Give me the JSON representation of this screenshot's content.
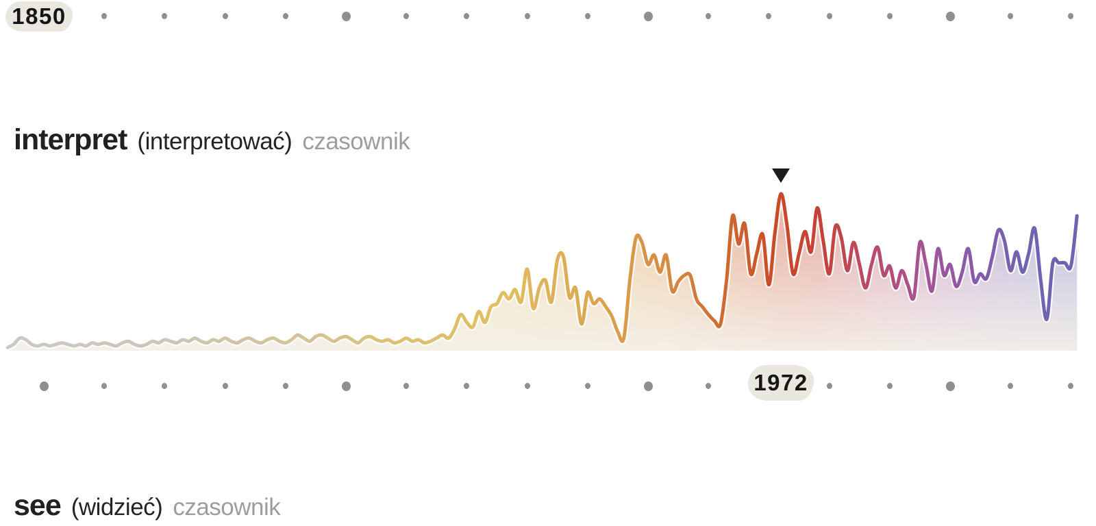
{
  "timeline": {
    "dot_color": "#8f8f8f",
    "badge_bg": "#eae7df",
    "start_badge": "1850",
    "peak_badge": "1972",
    "top_row": {
      "badge_year": 1850,
      "dot_years": [
        1860,
        1870,
        1880,
        1890,
        1900,
        1910,
        1920,
        1930,
        1940,
        1950,
        1960,
        1970,
        1980,
        1990,
        2000,
        2010,
        2020
      ]
    },
    "bottom_row": {
      "badge_year": 1972,
      "dot_years": [
        1850,
        1860,
        1870,
        1880,
        1890,
        1900,
        1910,
        1920,
        1930,
        1940,
        1950,
        1960,
        1980,
        1990,
        2000,
        2010,
        2020
      ]
    },
    "large_dot_years": [
      1850,
      1900,
      1950,
      2000
    ]
  },
  "entries": [
    {
      "word": "interpret",
      "translation": "(interpretować)",
      "pos": "czasownik"
    },
    {
      "word": "see",
      "translation": "(widzieć)",
      "pos": "czasownik"
    }
  ],
  "chart_data": {
    "type": "area",
    "series_name": "interpret",
    "title": "",
    "xlabel": "",
    "ylabel": "",
    "grid": false,
    "legend": "none",
    "x_start_year": 1844,
    "x_step_years": 1,
    "ylim": [
      0,
      100
    ],
    "x_axis_dot_interval_years": 10,
    "x_axis_major_years": [
      1850,
      1900,
      1950,
      2000
    ],
    "values": [
      2,
      4,
      8,
      7,
      4,
      3,
      4,
      3,
      4,
      5,
      4,
      3,
      4,
      3,
      5,
      4,
      5,
      4,
      3,
      5,
      6,
      4,
      3,
      4,
      6,
      5,
      7,
      6,
      5,
      7,
      6,
      8,
      6,
      5,
      7,
      6,
      8,
      6,
      5,
      7,
      8,
      6,
      5,
      7,
      8,
      6,
      5,
      7,
      10,
      8,
      6,
      9,
      10,
      8,
      6,
      8,
      9,
      7,
      5,
      8,
      9,
      7,
      6,
      7,
      5,
      6,
      8,
      6,
      7,
      5,
      6,
      8,
      10,
      8,
      14,
      23,
      18,
      15,
      25,
      18,
      28,
      30,
      37,
      33,
      39,
      31,
      52,
      27,
      40,
      45,
      31,
      58,
      60,
      34,
      40,
      17,
      37,
      30,
      33,
      28,
      22,
      12,
      8,
      45,
      72,
      69,
      55,
      61,
      50,
      61,
      38,
      44,
      48,
      48,
      33,
      28,
      23,
      19,
      17,
      45,
      86,
      68,
      81,
      49,
      62,
      74,
      42,
      75,
      100,
      80,
      49,
      62,
      76,
      63,
      91,
      70,
      49,
      79,
      72,
      51,
      69,
      55,
      40,
      55,
      66,
      48,
      54,
      40,
      51,
      42,
      34,
      69,
      55,
      38,
      65,
      48,
      55,
      41,
      50,
      65,
      44,
      49,
      46,
      60,
      77,
      70,
      51,
      63,
      50,
      62,
      78,
      45,
      20,
      56,
      56,
      56,
      54,
      86
    ],
    "peak": {
      "year": 1972,
      "value": 100,
      "label": "1972",
      "marker": "down-triangle",
      "marker_color": "#1c1c1c"
    },
    "line_gradient": [
      [
        0.0,
        "#c9c9c9"
      ],
      [
        0.15,
        "#ccc6b6"
      ],
      [
        0.28,
        "#d4c394"
      ],
      [
        0.37,
        "#dcc172"
      ],
      [
        0.47,
        "#e0bd60"
      ],
      [
        0.55,
        "#dca452"
      ],
      [
        0.62,
        "#d68a40"
      ],
      [
        0.68,
        "#cd632f"
      ],
      [
        0.72,
        "#c84a28"
      ],
      [
        0.76,
        "#c44238"
      ],
      [
        0.8,
        "#bc4a60"
      ],
      [
        0.85,
        "#a85390"
      ],
      [
        0.9,
        "#8a5aaa"
      ],
      [
        0.95,
        "#7263ae"
      ],
      [
        1.0,
        "#6c63b2"
      ]
    ]
  }
}
